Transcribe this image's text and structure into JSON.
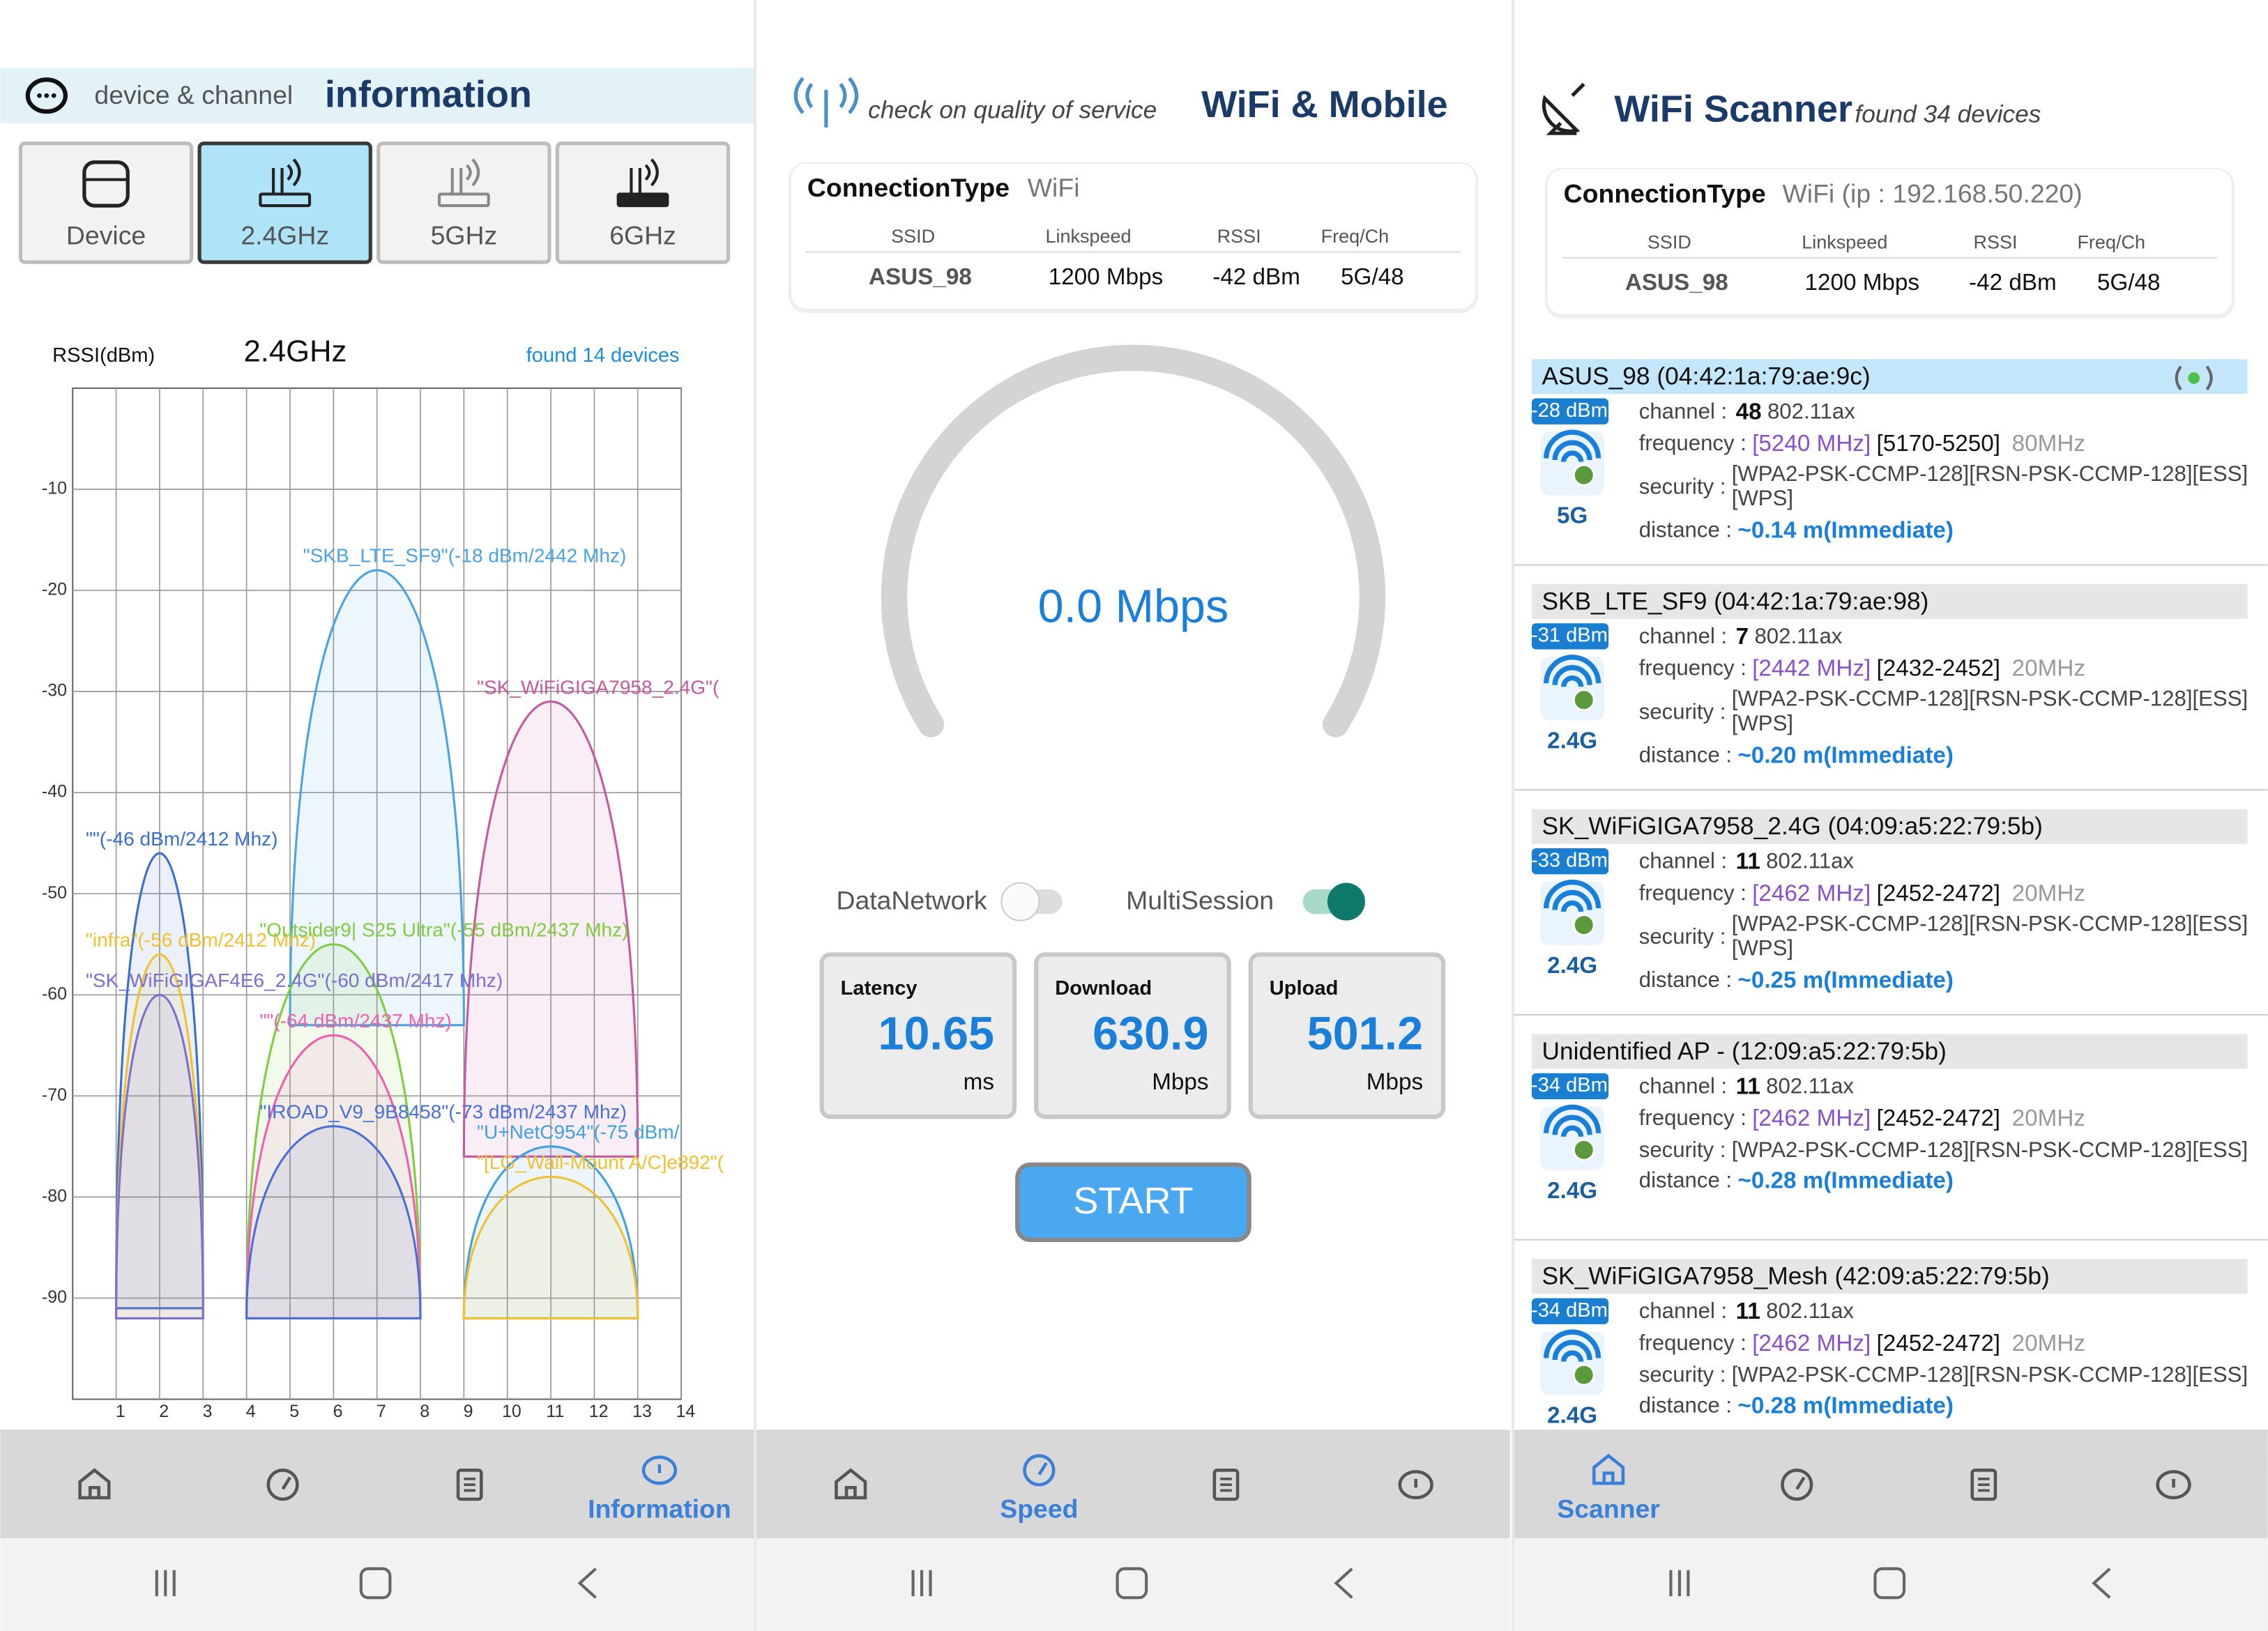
{
  "screens": [
    {
      "header": {
        "subtitle": "device & channel",
        "title": "information"
      },
      "tabs": [
        "Device",
        "2.4GHz",
        "5GHz",
        "6GHz"
      ],
      "selected_tab": 1,
      "chart": {
        "y_label": "RSSI(dBm)",
        "band": "2.4GHz",
        "found": "found 14 devices",
        "ylim": [
          -100,
          0
        ],
        "yticks": [
          -10,
          -20,
          -30,
          -40,
          -50,
          -60,
          -70,
          -80,
          -90
        ],
        "xlim": [
          0,
          14
        ],
        "xticks": [
          1,
          2,
          3,
          4,
          5,
          6,
          7,
          8,
          9,
          10,
          11,
          12,
          13,
          14
        ],
        "grid": true,
        "networks": [
          {
            "label": "\"SKB_LTE_SF9\"(-18 dBm/2442 Mhz)",
            "rssi": -18,
            "center": 7,
            "span": [
              5,
              9
            ],
            "color": "#4ba3e3"
          },
          {
            "label": "\"SK_WiFiGIGA7958_2.4G\"(",
            "rssi": -31,
            "center": 11,
            "span": [
              9,
              13
            ],
            "color": "#c45aa0"
          },
          {
            "label": "\"\"(-46 dBm/2412 Mhz)",
            "rssi": -46,
            "center": 2,
            "span": [
              1,
              3
            ],
            "color": "#3a6fd0"
          },
          {
            "label": "\"infra\"(-56 dBm/2412 Mhz)",
            "rssi": -56,
            "center": 2,
            "span": [
              1,
              3
            ],
            "color": "#f0c030"
          },
          {
            "label": "\"SK_WiFiGIGAF4E6_2.4G\"(-60 dBm/2417 Mhz)",
            "rssi": -60,
            "center": 2,
            "span": [
              1,
              3
            ],
            "color": "#7b6fd0"
          },
          {
            "label": "\"Outsider9| S25 Ultra\"(-55 dBm/2437 Mhz)",
            "rssi": -55,
            "center": 6,
            "span": [
              4,
              8
            ],
            "color": "#80cc40"
          },
          {
            "label": "\"\"(-64 dBm/2437 Mhz)",
            "rssi": -64,
            "center": 6,
            "span": [
              4,
              8
            ],
            "color": "#f060b0"
          },
          {
            "label": "\"IROAD_V9_9B8458\"(-73 dBm/2437 Mhz)",
            "rssi": -73,
            "center": 6,
            "span": [
              4,
              8
            ],
            "color": "#4a70d8"
          },
          {
            "label": "\"U+NetC954\"(-75 dBm/",
            "rssi": -75,
            "center": 11,
            "span": [
              9,
              13
            ],
            "color": "#40a0e0"
          },
          {
            "label": "\"[LG_Wall-Mount A/C]e892\"(",
            "rssi": -78,
            "center": 11,
            "span": [
              9,
              13
            ],
            "color": "#f0c030"
          }
        ]
      },
      "nav_label": "Information",
      "active_nav": 3
    },
    {
      "header": {
        "subtitle": "check on quality of service",
        "title": "WiFi & Mobile"
      },
      "connection": {
        "label": "ConnectionType",
        "value": "WiFi",
        "columns": [
          "SSID",
          "Linkspeed",
          "RSSI",
          "Freq/Ch"
        ],
        "row": [
          "ASUS_98",
          "1200 Mbps",
          "-42 dBm",
          "5G/48"
        ]
      },
      "gauge": "0.0 Mbps",
      "toggles": [
        {
          "label": "DataNetwork",
          "on": false
        },
        {
          "label": "MultiSession",
          "on": true
        }
      ],
      "stats": [
        {
          "label": "Latency",
          "value": "10.65",
          "unit": "ms"
        },
        {
          "label": "Download",
          "value": "630.9",
          "unit": "Mbps"
        },
        {
          "label": "Upload",
          "value": "501.2",
          "unit": "Mbps"
        }
      ],
      "button": "START",
      "nav_label": "Speed",
      "active_nav": 1
    },
    {
      "header": {
        "title": "WiFi Scanner",
        "subtitle": "found 34 devices"
      },
      "connection": {
        "label": "ConnectionType",
        "value": "WiFi (ip : 192.168.50.220)",
        "columns": [
          "SSID",
          "Linkspeed",
          "RSSI",
          "Freq/Ch"
        ],
        "row": [
          "ASUS_98",
          "1200 Mbps",
          "-42 dBm",
          "5G/48"
        ]
      },
      "field_labels": {
        "channel": "channel :",
        "frequency": "frequency :",
        "security": "security :",
        "distance": "distance :"
      },
      "devices": [
        {
          "name": "ASUS_98 (04:42:1a:79:ae:9c)",
          "rssi": "-28 dBm",
          "band": "5G",
          "channel": "48",
          "standard": "802.11ax",
          "frequency": "[5240 MHz]",
          "range": "[5170-5250]",
          "width": "80MHz",
          "security": [
            "[WPA2-PSK-CCMP-128][RSN-PSK-CCMP-128][ESS]",
            "[WPS]"
          ],
          "distance": "~0.14 m(Immediate)"
        },
        {
          "name": "SKB_LTE_SF9 (04:42:1a:79:ae:98)",
          "rssi": "-31 dBm",
          "band": "2.4G",
          "channel": "7",
          "standard": "802.11ax",
          "frequency": "[2442 MHz]",
          "range": "[2432-2452]",
          "width": "20MHz",
          "security": [
            "[WPA2-PSK-CCMP-128][RSN-PSK-CCMP-128][ESS]",
            "[WPS]"
          ],
          "distance": "~0.20 m(Immediate)"
        },
        {
          "name": "SK_WiFiGIGA7958_2.4G (04:09:a5:22:79:5b)",
          "rssi": "-33 dBm",
          "band": "2.4G",
          "channel": "11",
          "standard": "802.11ax",
          "frequency": "[2462 MHz]",
          "range": "[2452-2472]",
          "width": "20MHz",
          "security": [
            "[WPA2-PSK-CCMP-128][RSN-PSK-CCMP-128][ESS]",
            "[WPS]"
          ],
          "distance": "~0.25 m(Immediate)"
        },
        {
          "name": "Unidentified AP - (12:09:a5:22:79:5b)",
          "rssi": "-34 dBm",
          "band": "2.4G",
          "channel": "11",
          "standard": "802.11ax",
          "frequency": "[2462 MHz]",
          "range": "[2452-2472]",
          "width": "20MHz",
          "security": [
            "[WPA2-PSK-CCMP-128][RSN-PSK-CCMP-128][ESS]"
          ],
          "distance": "~0.28 m(Immediate)"
        },
        {
          "name": "SK_WiFiGIGA7958_Mesh (42:09:a5:22:79:5b)",
          "rssi": "-34 dBm",
          "band": "2.4G",
          "channel": "11",
          "standard": "802.11ax",
          "frequency": "[2462 MHz]",
          "range": "[2452-2472]",
          "width": "20MHz",
          "security": [
            "[WPA2-PSK-CCMP-128][RSN-PSK-CCMP-128][ESS]"
          ],
          "distance": "~0.28 m(Immediate)"
        }
      ],
      "nav_label": "Scanner",
      "active_nav": 0
    }
  ]
}
